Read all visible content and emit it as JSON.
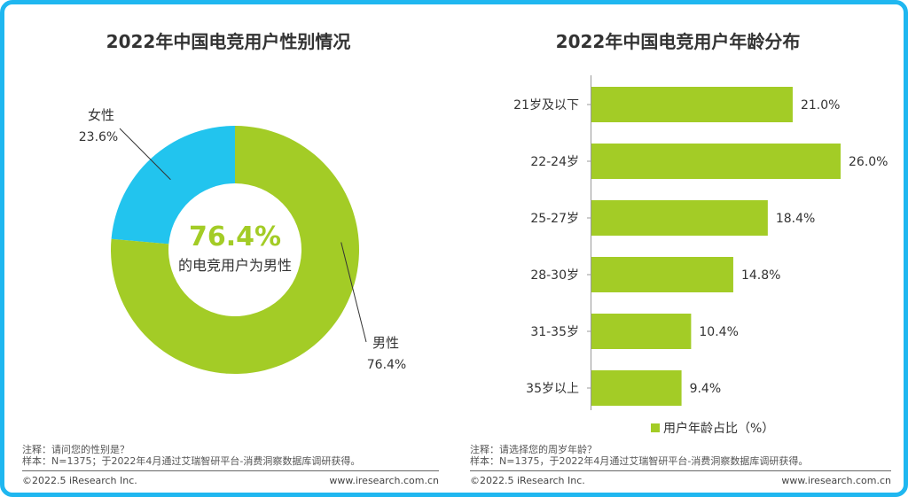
{
  "colors": {
    "border": "#1fb7f0",
    "male": "#a3cc26",
    "female": "#22c4ee",
    "bar": "#a3cc26"
  },
  "left": {
    "title": "2022年中国电竞用户性别情况",
    "center_value": "76.4%",
    "center_text": "的电竞用户为男性",
    "note_line1": "注释：请问您的性别是？",
    "note_line2": "样本：N=1375；于2022年4月通过艾瑞智研平台-消费洞察数据库调研获得。",
    "copyright": "©2022.5 iResearch Inc.",
    "website": "www.iresearch.com.cn"
  },
  "right": {
    "title": "2022年中国电竞用户年龄分布",
    "note_line1": "注释：请选择您的周岁年龄？",
    "note_line2": "样本：N=1375，于2022年4月通过艾瑞智研平台-消费洞察数据库调研获得。",
    "copyright": "©2022.5 iResearch Inc.",
    "website": "www.iresearch.com.cn"
  },
  "chart_data": [
    {
      "type": "pie",
      "title": "2022年中国电竞用户性别情况",
      "categories": [
        "女性",
        "男性"
      ],
      "values": [
        23.6,
        76.4
      ],
      "labels": [
        "23.6%",
        "76.4%"
      ]
    },
    {
      "type": "bar",
      "orientation": "horizontal",
      "title": "2022年中国电竞用户年龄分布",
      "categories": [
        "21岁及以下",
        "22-24岁",
        "25-27岁",
        "28-30岁",
        "31-35岁",
        "35岁以上"
      ],
      "values": [
        21.0,
        26.0,
        18.4,
        14.8,
        10.4,
        9.4
      ],
      "labels": [
        "21.0%",
        "26.0%",
        "18.4%",
        "14.8%",
        "10.4%",
        "9.4%"
      ],
      "legend": "用户年龄占比（%）",
      "xlim": [
        0,
        26
      ]
    }
  ]
}
